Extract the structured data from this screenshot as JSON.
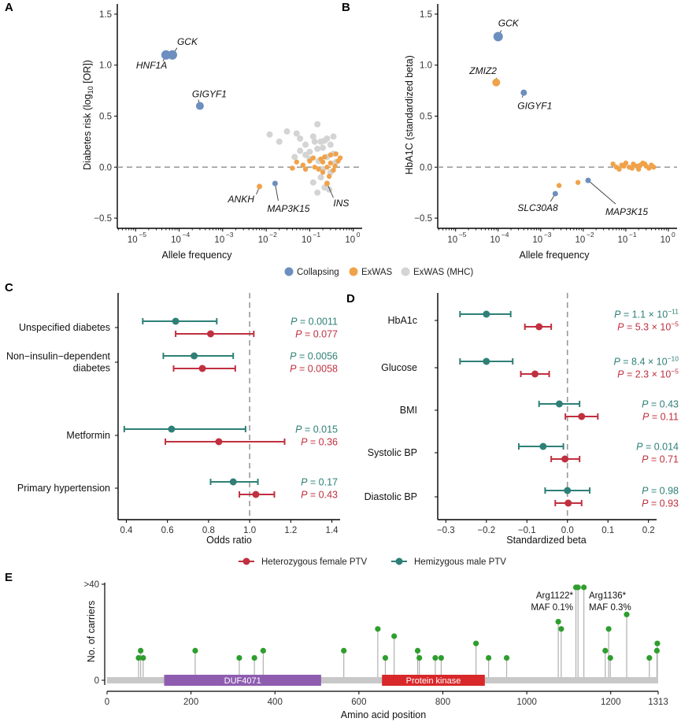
{
  "panel_letters": [
    "A",
    "B",
    "C",
    "D",
    "E"
  ],
  "colors": {
    "collapsing": "#6d8fbf",
    "exwas": "#f0a24a",
    "mhc": "#d4d4d4",
    "female": "#c0303f",
    "male": "#2e8077",
    "carrier": "#2e9e2e",
    "duf": "#8e5db0",
    "kinase": "#d8282a"
  },
  "legend_ab": [
    "Collapsing",
    "ExWAS",
    "ExWAS (MHC)"
  ],
  "legend_cd": [
    "Heterozygous female PTV",
    "Hemizygous male PTV"
  ],
  "chart_data": [
    {
      "panel": "A",
      "type": "scatter",
      "xlabel": "Allele frequency",
      "ylabel": "Diabetes risk (log10 [OR])",
      "x_scale": "log10",
      "xlim": [
        3.8e-06,
        1.6
      ],
      "ylim": [
        -0.6,
        1.6
      ],
      "x_ticks": [
        "10",
        "10",
        "10",
        "10",
        "10",
        "10"
      ],
      "x_tick_exps": [
        "−5",
        "−4",
        "−3",
        "−2",
        "−1",
        "0"
      ],
      "y_ticks": [
        "−0.5",
        "0.0",
        "0.5",
        "1.0",
        "1.5"
      ],
      "reference_line_y": 0,
      "labeled_points": [
        {
          "label": "GCK",
          "x": 7e-05,
          "y": 1.1,
          "type": "Collapsing"
        },
        {
          "label": "HNF1A",
          "x": 5e-05,
          "y": 1.1,
          "type": "Collapsing"
        },
        {
          "label": "GIGYF1",
          "x": 0.0003,
          "y": 0.6,
          "type": "Collapsing"
        },
        {
          "label": "ANKH",
          "x": 0.007,
          "y": -0.19,
          "type": "ExWAS"
        },
        {
          "label": "MAP3K15",
          "x": 0.016,
          "y": -0.16,
          "type": "Collapsing"
        },
        {
          "label": "INS",
          "x": 0.25,
          "y": -0.16,
          "type": "ExWAS"
        }
      ],
      "exwas_points": [
        [
          0.05,
          0.05
        ],
        [
          0.07,
          0.02
        ],
        [
          0.1,
          0.06
        ],
        [
          0.13,
          0.0
        ],
        [
          0.16,
          -0.02
        ],
        [
          0.18,
          0.08
        ],
        [
          0.2,
          0.05
        ],
        [
          0.22,
          0.1
        ],
        [
          0.25,
          0.0
        ],
        [
          0.3,
          0.04
        ],
        [
          0.35,
          -0.03
        ],
        [
          0.4,
          0.13
        ],
        [
          0.45,
          0.06
        ],
        [
          0.3,
          0.12
        ],
        [
          0.2,
          -0.05
        ],
        [
          0.5,
          0.09
        ],
        [
          0.12,
          0.09
        ],
        [
          0.08,
          -0.02
        ],
        [
          0.04,
          -0.01
        ],
        [
          0.28,
          -0.09
        ],
        [
          0.38,
          0.01
        ]
      ],
      "mhc_points": [
        [
          0.012,
          0.32
        ],
        [
          0.02,
          0.25
        ],
        [
          0.03,
          0.35
        ],
        [
          0.05,
          0.33
        ],
        [
          0.06,
          0.28
        ],
        [
          0.08,
          0.22
        ],
        [
          0.1,
          0.15
        ],
        [
          0.12,
          0.3
        ],
        [
          0.15,
          0.42
        ],
        [
          0.18,
          0.25
        ],
        [
          0.2,
          0.19
        ],
        [
          0.25,
          0.1
        ],
        [
          0.3,
          0.22
        ],
        [
          0.35,
          0.13
        ],
        [
          0.4,
          0.05
        ],
        [
          0.15,
          0.18
        ],
        [
          0.22,
          0.26
        ],
        [
          0.1,
          0.08
        ],
        [
          0.08,
          0.12
        ],
        [
          0.3,
          -0.05
        ],
        [
          0.18,
          -0.1
        ],
        [
          0.22,
          -0.2
        ],
        [
          0.15,
          -0.25
        ],
        [
          0.28,
          -0.22
        ],
        [
          0.12,
          -0.15
        ],
        [
          0.25,
          0.28
        ],
        [
          0.045,
          0.1
        ],
        [
          0.35,
          0.3
        ],
        [
          0.13,
          0.25
        ],
        [
          0.06,
          0.16
        ],
        [
          0.2,
          -0.02
        ],
        [
          0.16,
          0.06
        ]
      ]
    },
    {
      "panel": "B",
      "type": "scatter",
      "xlabel": "Allele frequency",
      "ylabel": "HbA1C (standardized beta)",
      "x_scale": "log10",
      "xlim": [
        3.8e-06,
        1.6
      ],
      "ylim": [
        -0.6,
        1.6
      ],
      "x_ticks": [
        "10",
        "10",
        "10",
        "10",
        "10",
        "10"
      ],
      "x_tick_exps": [
        "−5",
        "−4",
        "−3",
        "−2",
        "−1",
        "0"
      ],
      "y_ticks": [
        "−0.5",
        "0.0",
        "0.5",
        "1.0",
        "1.5"
      ],
      "reference_line_y": 0,
      "labeled_points": [
        {
          "label": "GCK",
          "x": 0.0001,
          "y": 1.28,
          "type": "Collapsing"
        },
        {
          "label": "ZMIZ2",
          "x": 9e-05,
          "y": 0.83,
          "type": "ExWAS"
        },
        {
          "label": "GIGYF1",
          "x": 0.0004,
          "y": 0.73,
          "type": "Collapsing"
        },
        {
          "label": "SLC30A8",
          "x": 0.0022,
          "y": -0.26,
          "type": "Collapsing"
        },
        {
          "label": "MAP3K15",
          "x": 0.013,
          "y": -0.13,
          "type": "Collapsing"
        }
      ],
      "exwas_points": [
        [
          0.0027,
          -0.18
        ],
        [
          0.0075,
          -0.15
        ],
        [
          0.05,
          0.03
        ],
        [
          0.06,
          0.0
        ],
        [
          0.08,
          0.02
        ],
        [
          0.1,
          0.04
        ],
        [
          0.12,
          0.0
        ],
        [
          0.15,
          0.03
        ],
        [
          0.18,
          0.01
        ],
        [
          0.2,
          -0.02
        ],
        [
          0.22,
          0.02
        ],
        [
          0.25,
          0.04
        ],
        [
          0.3,
          0.01
        ],
        [
          0.35,
          -0.01
        ],
        [
          0.4,
          0.02
        ],
        [
          0.45,
          0.0
        ],
        [
          0.14,
          -0.01
        ],
        [
          0.09,
          0.01
        ],
        [
          0.28,
          0.03
        ],
        [
          0.07,
          -0.02
        ]
      ]
    },
    {
      "panel": "C",
      "type": "forest",
      "xlabel": "Odds ratio",
      "xlim": [
        0.36,
        1.44
      ],
      "x_ticks": [
        "0.4",
        "0.6",
        "0.8",
        "1.0",
        "1.2",
        "1.4"
      ],
      "reference_line_x": 1.0,
      "rows": [
        {
          "label": [
            "Unspecified diabetes"
          ],
          "male": {
            "est": 0.64,
            "lo": 0.48,
            "hi": 0.84,
            "p": "P = 0.0011"
          },
          "female": {
            "est": 0.81,
            "lo": 0.64,
            "hi": 1.02,
            "p": "P = 0.077"
          }
        },
        {
          "label": [
            "Non−insulin−dependent",
            "diabetes"
          ],
          "male": {
            "est": 0.73,
            "lo": 0.58,
            "hi": 0.92,
            "p": "P = 0.0056"
          },
          "female": {
            "est": 0.77,
            "lo": 0.63,
            "hi": 0.93,
            "p": "P = 0.0058"
          }
        },
        {
          "label": [
            "Metformin"
          ],
          "male": {
            "est": 0.62,
            "lo": 0.39,
            "hi": 0.98,
            "p": "P = 0.015"
          },
          "female": {
            "est": 0.85,
            "lo": 0.59,
            "hi": 1.17,
            "p": "P = 0.36"
          }
        },
        {
          "label": [
            "Primary hypertension"
          ],
          "male": {
            "est": 0.92,
            "lo": 0.81,
            "hi": 1.04,
            "p": "P = 0.17"
          },
          "female": {
            "est": 1.03,
            "lo": 0.95,
            "hi": 1.12,
            "p": "P = 0.43"
          }
        }
      ]
    },
    {
      "panel": "D",
      "type": "forest",
      "xlabel": "Standardized beta",
      "xlim": [
        -0.32,
        0.22
      ],
      "x_ticks": [
        "−0.3",
        "−0.2",
        "−0.1",
        "0.0",
        "0.1",
        "0.2"
      ],
      "reference_line_x": 0,
      "rows": [
        {
          "label": [
            "HbA1c"
          ],
          "male": {
            "est": -0.2,
            "lo": -0.265,
            "hi": -0.14,
            "p": "P = 1.1 × 10",
            "exp": "−11"
          },
          "female": {
            "est": -0.07,
            "lo": -0.105,
            "hi": -0.04,
            "p": "P = 5.3 × 10",
            "exp": "−5"
          }
        },
        {
          "label": [
            "Glucose"
          ],
          "male": {
            "est": -0.2,
            "lo": -0.265,
            "hi": -0.135,
            "p": "P = 8.4 × 10",
            "exp": "−10"
          },
          "female": {
            "est": -0.08,
            "lo": -0.115,
            "hi": -0.045,
            "p": "P = 2.3 × 10",
            "exp": "−5"
          }
        },
        {
          "label": [
            "BMI"
          ],
          "male": {
            "est": -0.02,
            "lo": -0.07,
            "hi": 0.03,
            "p": "P = 0.43"
          },
          "female": {
            "est": 0.035,
            "lo": -0.005,
            "hi": 0.075,
            "p": "P = 0.11"
          }
        },
        {
          "label": [
            "Systolic BP"
          ],
          "male": {
            "est": -0.06,
            "lo": -0.12,
            "hi": -0.01,
            "p": "P = 0.014"
          },
          "female": {
            "est": -0.006,
            "lo": -0.04,
            "hi": 0.03,
            "p": "P = 0.71"
          }
        },
        {
          "label": [
            "Diastolic BP"
          ],
          "male": {
            "est": 0.0,
            "lo": -0.055,
            "hi": 0.055,
            "p": "P = 0.98"
          },
          "female": {
            "est": 0.002,
            "lo": -0.03,
            "hi": 0.035,
            "p": "P = 0.93"
          }
        }
      ]
    },
    {
      "panel": "E",
      "type": "lollipop",
      "xlabel": "Amino acid position",
      "ylabel": "No. of carriers",
      "xlim": [
        0,
        1313
      ],
      "x_ticks": [
        "0",
        "200",
        "400",
        "600",
        "800",
        "1000",
        "1200",
        "1313"
      ],
      "y_ticks": [
        "0",
        ">40"
      ],
      "domains": [
        {
          "name": "DUF4071",
          "start": 136,
          "end": 510,
          "color": "duf"
        },
        {
          "name": "Protein kinase",
          "start": 655,
          "end": 900,
          "color": "kinase"
        }
      ],
      "annotations": [
        {
          "lines": [
            "Arg1122*",
            "MAF 0.1%"
          ],
          "pos": 1122
        },
        {
          "lines": [
            "Arg1136*",
            "MAF 0.3%"
          ],
          "pos": 1136
        }
      ],
      "variants": [
        [
          75,
          2
        ],
        [
          80,
          3
        ],
        [
          86,
          2
        ],
        [
          210,
          3
        ],
        [
          315,
          2
        ],
        [
          351,
          2
        ],
        [
          372,
          3
        ],
        [
          564,
          3
        ],
        [
          645,
          6
        ],
        [
          663,
          2
        ],
        [
          684,
          5
        ],
        [
          744,
          2
        ],
        [
          740,
          3
        ],
        [
          782,
          2
        ],
        [
          796,
          2
        ],
        [
          879,
          4
        ],
        [
          909,
          2
        ],
        [
          952,
          2
        ],
        [
          1075,
          7
        ],
        [
          1082,
          6
        ],
        [
          1117,
          45
        ],
        [
          1122,
          44
        ],
        [
          1136,
          45
        ],
        [
          1187,
          3
        ],
        [
          1195,
          6
        ],
        [
          1199,
          2
        ],
        [
          1238,
          8
        ],
        [
          1292,
          2
        ],
        [
          1310,
          3
        ],
        [
          1311,
          4
        ]
      ]
    }
  ]
}
